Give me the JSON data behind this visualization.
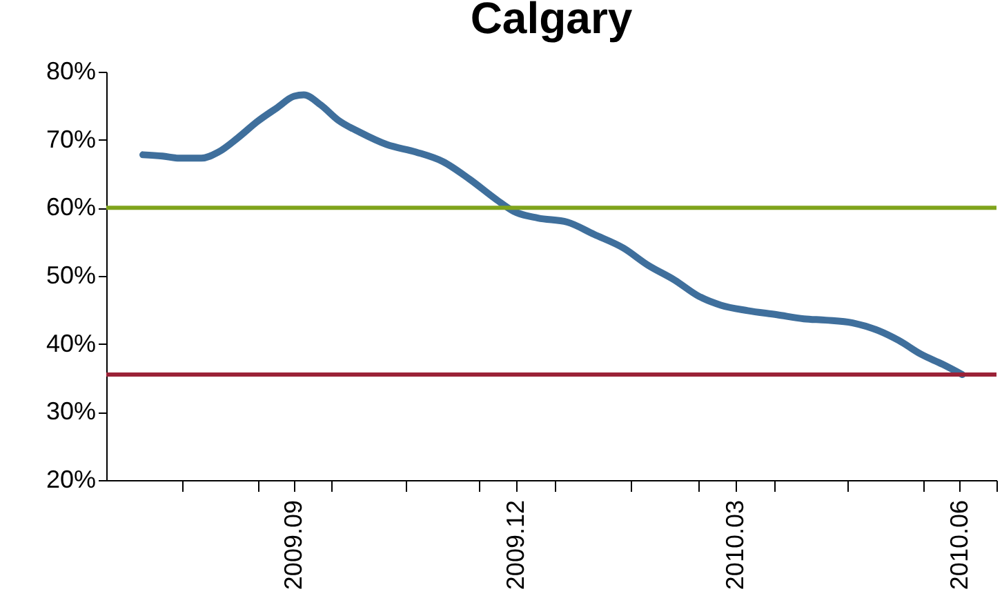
{
  "chart_data": {
    "type": "line",
    "title": "Calgary",
    "x": [
      "2009-07-16",
      "2009-07-24",
      "2009-07-31",
      "2009-08-09",
      "2009-08-16",
      "2009-08-24",
      "2009-09-01",
      "2009-09-09",
      "2009-09-16",
      "2009-09-20",
      "2009-09-27",
      "2009-10-04",
      "2009-10-13",
      "2009-10-24",
      "2009-11-05",
      "2009-11-16",
      "2009-11-27",
      "2009-12-08",
      "2009-12-15",
      "2009-12-25",
      "2010-01-06",
      "2010-01-17",
      "2010-01-29",
      "2010-02-08",
      "2010-02-19",
      "2010-03-01",
      "2010-03-10",
      "2010-03-21",
      "2010-04-02",
      "2010-04-13",
      "2010-04-22",
      "2010-05-03",
      "2010-05-14",
      "2010-05-22",
      "2010-05-31",
      "2010-06-09",
      "2010-06-17"
    ],
    "series": [
      {
        "color": "#3f6f9c",
        "values": [
          67.8,
          67.6,
          67.3,
          67.3,
          68.2,
          70.3,
          72.7,
          74.7,
          76.4,
          76.6,
          75.1,
          72.9,
          71.1,
          69.3,
          68.2,
          66.8,
          64.2,
          61.2,
          59.5,
          58.5,
          57.9,
          56.1,
          54.1,
          51.6,
          49.4,
          47.0,
          45.7,
          44.9,
          44.3,
          43.7,
          43.5,
          43.1,
          41.9,
          40.5,
          38.5,
          37.0,
          35.5
        ]
      }
    ],
    "xlim": [
      "2009-07-01",
      "2010-07-01"
    ],
    "xticks": [
      {
        "value": "2009-08-01",
        "label": null
      },
      {
        "value": "2009-09-01",
        "label": null
      },
      {
        "value": "2009-09-16",
        "label": "2009.09"
      },
      {
        "value": "2009-10-01",
        "label": null
      },
      {
        "value": "2009-11-01",
        "label": null
      },
      {
        "value": "2009-12-01",
        "label": null
      },
      {
        "value": "2009-12-16",
        "label": "2009.12"
      },
      {
        "value": "2010-01-01",
        "label": null
      },
      {
        "value": "2010-02-01",
        "label": null
      },
      {
        "value": "2010-03-01",
        "label": null
      },
      {
        "value": "2010-03-16",
        "label": "2010.03"
      },
      {
        "value": "2010-04-01",
        "label": null
      },
      {
        "value": "2010-05-01",
        "label": null
      },
      {
        "value": "2010-06-01",
        "label": null
      },
      {
        "value": "2010-06-16",
        "label": "2010.06"
      },
      {
        "value": "2010-07-01",
        "label": null
      }
    ],
    "ylim": [
      20,
      80
    ],
    "yticks": [
      {
        "value": 20,
        "label": "20%"
      },
      {
        "value": 30,
        "label": "30%"
      },
      {
        "value": 40,
        "label": "40%"
      },
      {
        "value": 50,
        "label": "50%"
      },
      {
        "value": 60,
        "label": "60%"
      },
      {
        "value": 70,
        "label": "70%"
      },
      {
        "value": 80,
        "label": "80%"
      }
    ],
    "ref_lines": [
      {
        "axis": "y",
        "value": 60,
        "label": null,
        "color": "#7fa41c"
      },
      {
        "axis": "y",
        "value": 35.5,
        "label": null,
        "color": "#9b2237"
      }
    ],
    "grid": false,
    "legend": false,
    "marker": "none",
    "line_style": "solid"
  }
}
